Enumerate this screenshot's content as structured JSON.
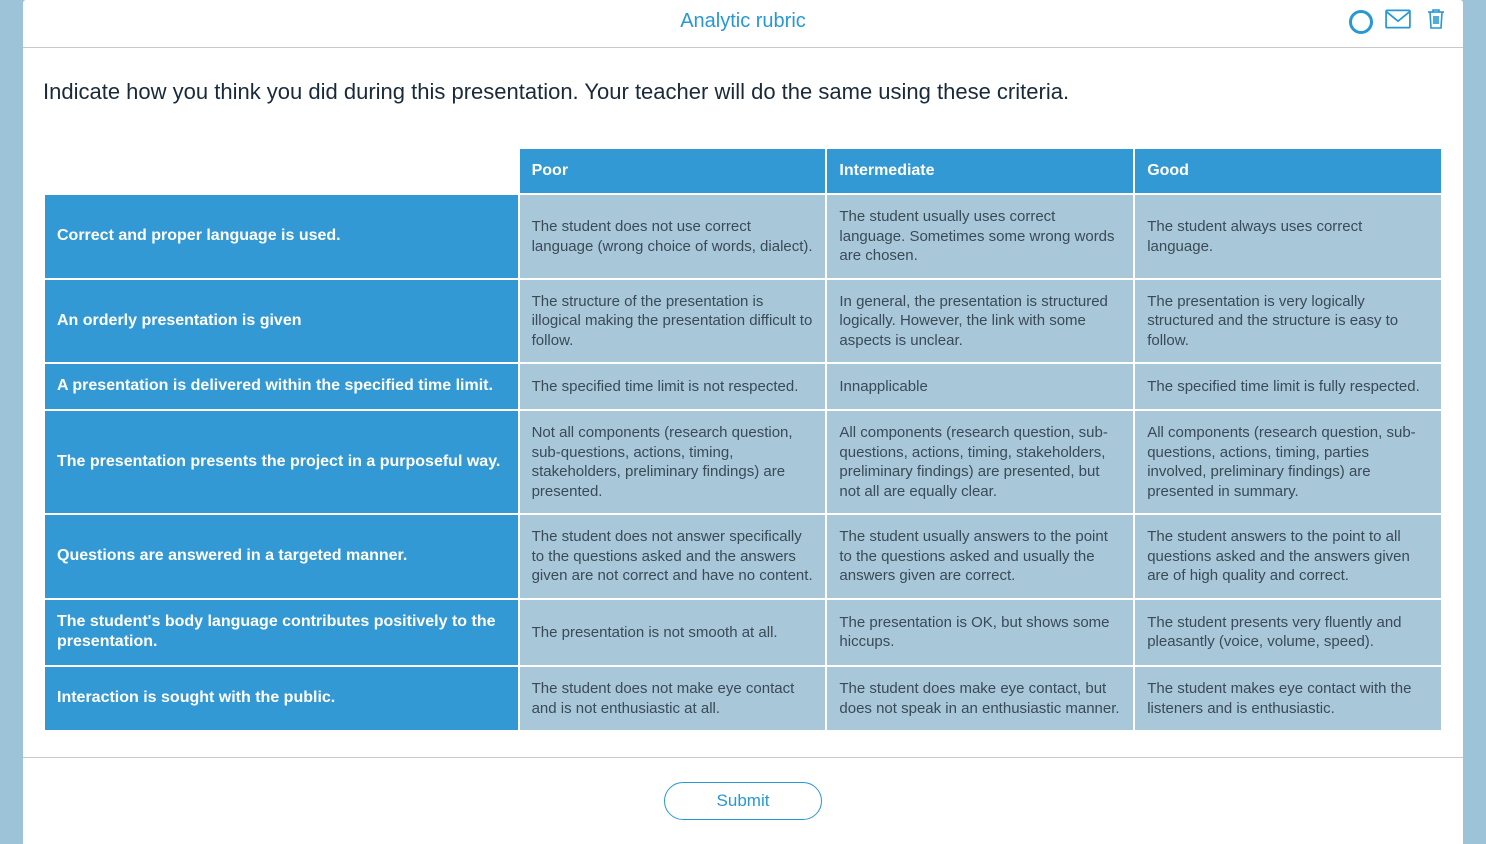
{
  "header": {
    "title": "Analytic rubric"
  },
  "instructions": "Indicate how you think you did during this presentation. Your teacher will do the same using these criteria.",
  "rubric": {
    "type": "table",
    "background_color": "#ffffff",
    "colors": {
      "header_bg": "#3399d4",
      "header_text": "#ffffff",
      "cell_bg": "#a8c7d9",
      "cell_text": "#3a4a57",
      "accent": "#2798d4",
      "page_bg": "#9dc3d9"
    },
    "columns": [
      "Poor",
      "Intermediate",
      "Good"
    ],
    "rows": [
      {
        "criterion": "Correct and proper language is used.",
        "cells": [
          "The student does not use correct language (wrong choice of words, dialect).",
          "The student usually uses correct language. Sometimes some wrong words are chosen.",
          "The student always uses correct language."
        ]
      },
      {
        "criterion": "An orderly presentation is given",
        "cells": [
          "The structure of the presentation is illogical making the presentation difficult to follow.",
          "In general, the presentation is structured logically. However, the link with some aspects is unclear.",
          "The presentation is very logically structured and the structure is easy to follow."
        ]
      },
      {
        "criterion": "A presentation is delivered within the specified time limit.",
        "cells": [
          "The specified time limit is not respected.",
          "Innapplicable",
          "The specified time limit is fully respected."
        ]
      },
      {
        "criterion": "The presentation presents the project in a purposeful way.",
        "cells": [
          "Not all components (research question, sub-questions, actions, timing, stakeholders, preliminary findings) are presented.",
          "All components (research question, sub-questions, actions, timing, stakeholders, preliminary findings) are presented, but not all are equally clear.",
          "All components (research question, sub-questions, actions, timing, parties involved, preliminary findings) are presented in summary."
        ]
      },
      {
        "criterion": "Questions are answered in a targeted manner.",
        "cells": [
          "The student does not answer specifically to the questions asked and the answers given are not correct and have no content.",
          "The student usually answers to the point to the questions asked and usually the answers given are correct.",
          "The student answers to the point to all questions asked and the answers given are of high quality and correct."
        ]
      },
      {
        "criterion": "The student's body language contributes positively to the presentation.",
        "cells": [
          "The presentation is not smooth at all.",
          "The presentation is OK, but shows some hiccups.",
          "The student presents very fluently and pleasantly (voice, volume, speed)."
        ]
      },
      {
        "criterion": "Interaction is sought with the public.",
        "cells": [
          "The student does not make eye contact and is not enthusiastic at all.",
          "The student does make eye contact, but does not speak in an enthusiastic manner.",
          "The student makes eye contact with the listeners and is enthusiastic."
        ]
      }
    ]
  },
  "footer": {
    "submit_label": "Submit"
  }
}
